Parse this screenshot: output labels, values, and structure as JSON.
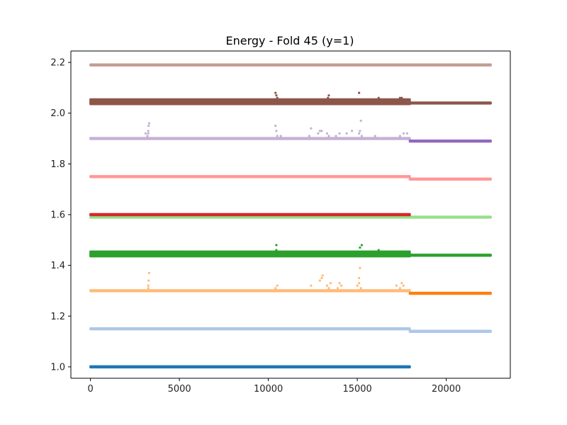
{
  "chart_data": {
    "type": "scatter",
    "title": "Energy - Fold 45 (y=1)",
    "xlabel": "",
    "ylabel": "",
    "xlim": [
      -1100,
      23600
    ],
    "ylim": [
      0.955,
      2.245
    ],
    "x_ticks": [
      0,
      5000,
      10000,
      15000,
      20000
    ],
    "x_tick_labels": [
      "0",
      "5000",
      "10000",
      "15000",
      "20000"
    ],
    "y_ticks": [
      1.0,
      1.2,
      1.4,
      1.6,
      1.8,
      2.0,
      2.2
    ],
    "y_tick_labels": [
      "1.0",
      "1.2",
      "1.4",
      "1.6",
      "1.8",
      "2.0",
      "2.2"
    ],
    "grid": false,
    "legend": "none",
    "series": [
      {
        "color": "#1f77b4",
        "x_range": [
          0,
          17950
        ],
        "y": 1.0,
        "band": 0.0,
        "outliers": []
      },
      {
        "color": "#aec7e8",
        "x_range": [
          0,
          17950
        ],
        "y": 1.15,
        "band": 0.0,
        "outliers": []
      },
      {
        "color": "#aec7e8",
        "x_range": [
          17950,
          22500
        ],
        "y": 1.14,
        "band": 0.0,
        "outliers": []
      },
      {
        "color": "#ffbb78",
        "x_range": [
          0,
          17950
        ],
        "y": 1.3,
        "band": 0.0,
        "outliers": [
          [
            3250,
            1.31
          ],
          [
            3250,
            1.32
          ],
          [
            3270,
            1.34
          ],
          [
            3300,
            1.37
          ],
          [
            10400,
            1.31
          ],
          [
            10500,
            1.32
          ],
          [
            12400,
            1.32
          ],
          [
            12900,
            1.34
          ],
          [
            13000,
            1.35
          ],
          [
            13050,
            1.36
          ],
          [
            13300,
            1.32
          ],
          [
            13400,
            1.31
          ],
          [
            13500,
            1.33
          ],
          [
            13900,
            1.31
          ],
          [
            14000,
            1.33
          ],
          [
            14100,
            1.32
          ],
          [
            15000,
            1.32
          ],
          [
            15100,
            1.33
          ],
          [
            15100,
            1.35
          ],
          [
            15150,
            1.39
          ],
          [
            15200,
            1.31
          ],
          [
            17200,
            1.32
          ],
          [
            17400,
            1.31
          ],
          [
            17500,
            1.33
          ],
          [
            17600,
            1.32
          ]
        ]
      },
      {
        "color": "#ff7f0e",
        "x_range": [
          17950,
          22500
        ],
        "y": 1.29,
        "band": 0.0,
        "outliers": []
      },
      {
        "color": "#2ca02c",
        "x_range": [
          0,
          17950
        ],
        "y": 1.445,
        "band": 0.016,
        "outliers": [
          [
            10450,
            1.48
          ],
          [
            10450,
            1.46
          ],
          [
            15150,
            1.47
          ],
          [
            15250,
            1.48
          ],
          [
            16200,
            1.46
          ]
        ]
      },
      {
        "color": "#2ca02c",
        "x_range": [
          17950,
          22500
        ],
        "y": 1.44,
        "band": 0.0,
        "outliers": []
      },
      {
        "color": "#98df8a",
        "x_range": [
          0,
          22500
        ],
        "y": 1.59,
        "band": 0.0,
        "outliers": []
      },
      {
        "color": "#d62728",
        "x_range": [
          0,
          17950
        ],
        "y": 1.6,
        "band": 0.0,
        "outliers": []
      },
      {
        "color": "#ff9896",
        "x_range": [
          0,
          17950
        ],
        "y": 1.75,
        "band": 0.0,
        "outliers": []
      },
      {
        "color": "#ff9896",
        "x_range": [
          17950,
          22500
        ],
        "y": 1.74,
        "band": 0.0,
        "outliers": []
      },
      {
        "color": "#c5b0d5",
        "x_range": [
          0,
          17950
        ],
        "y": 1.9,
        "band": 0.0,
        "outliers": [
          [
            3100,
            1.92
          ],
          [
            3250,
            1.92
          ],
          [
            3250,
            1.93
          ],
          [
            3270,
            1.95
          ],
          [
            3300,
            1.96
          ],
          [
            3200,
            1.91
          ],
          [
            10400,
            1.95
          ],
          [
            10450,
            1.93
          ],
          [
            10500,
            1.91
          ],
          [
            10700,
            1.91
          ],
          [
            12300,
            1.91
          ],
          [
            12400,
            1.94
          ],
          [
            12800,
            1.92
          ],
          [
            12900,
            1.93
          ],
          [
            13000,
            1.93
          ],
          [
            13300,
            1.92
          ],
          [
            13400,
            1.91
          ],
          [
            13800,
            1.91
          ],
          [
            14000,
            1.92
          ],
          [
            14400,
            1.92
          ],
          [
            14700,
            1.93
          ],
          [
            15100,
            1.92
          ],
          [
            15150,
            1.93
          ],
          [
            15200,
            1.97
          ],
          [
            15250,
            1.91
          ],
          [
            16000,
            1.91
          ],
          [
            17400,
            1.91
          ],
          [
            17600,
            1.92
          ],
          [
            17800,
            1.92
          ]
        ]
      },
      {
        "color": "#9467bd",
        "x_range": [
          17950,
          22500
        ],
        "y": 1.89,
        "band": 0.0,
        "outliers": []
      },
      {
        "color": "#8c564b",
        "x_range": [
          0,
          17950
        ],
        "y": 2.045,
        "band": 0.016,
        "outliers": [
          [
            10400,
            2.08
          ],
          [
            10450,
            2.07
          ],
          [
            10500,
            2.06
          ],
          [
            13400,
            2.07
          ],
          [
            13350,
            2.06
          ],
          [
            15100,
            2.08
          ],
          [
            16200,
            2.06
          ],
          [
            17400,
            2.06
          ],
          [
            17500,
            2.06
          ]
        ]
      },
      {
        "color": "#8c564b",
        "x_range": [
          17950,
          22500
        ],
        "y": 2.04,
        "band": 0.0,
        "outliers": []
      },
      {
        "color": "#c49c94",
        "x_range": [
          0,
          22500
        ],
        "y": 2.19,
        "band": 0.0,
        "outliers": []
      }
    ]
  }
}
